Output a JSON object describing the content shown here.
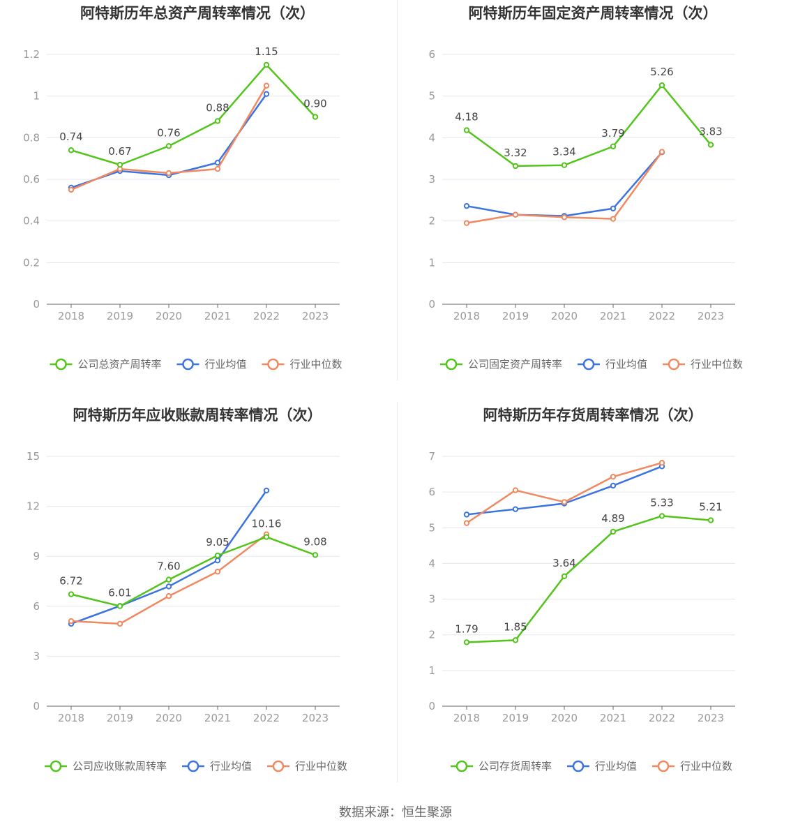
{
  "footer": {
    "source": "数据来源：恒生聚源"
  },
  "colors": {
    "company": "#52c41a",
    "avg": "#3b73e0",
    "median": "#f08860",
    "grid": "#e6e6f0",
    "axis": "#666666"
  },
  "chart_data": [
    {
      "type": "line",
      "title": "阿特斯历年总资产周转率情况（次）",
      "categories": [
        "2018",
        "2019",
        "2020",
        "2021",
        "2022",
        "2023"
      ],
      "ylim": [
        0,
        1.2
      ],
      "yticks": [
        "0",
        "0.2",
        "0.4",
        "0.6",
        "0.8",
        "1",
        "1.2"
      ],
      "series": [
        {
          "name": "公司总资产周转率",
          "values": [
            0.74,
            0.67,
            0.76,
            0.88,
            1.15,
            0.9
          ],
          "labels": [
            "0.74",
            "0.67",
            "0.76",
            "0.88",
            "1.15",
            "0.90"
          ]
        },
        {
          "name": "行业均值",
          "values": [
            0.56,
            0.64,
            0.62,
            0.68,
            1.01,
            null
          ]
        },
        {
          "name": "行业中位数",
          "values": [
            0.55,
            0.65,
            0.63,
            0.65,
            1.05,
            null
          ]
        }
      ]
    },
    {
      "type": "line",
      "title": "阿特斯历年固定资产周转率情况（次）",
      "categories": [
        "2018",
        "2019",
        "2020",
        "2021",
        "2022",
        "2023"
      ],
      "ylim": [
        0,
        6
      ],
      "yticks": [
        "0",
        "1",
        "2",
        "3",
        "4",
        "5",
        "6"
      ],
      "series": [
        {
          "name": "公司固定资产周转率",
          "values": [
            4.18,
            3.32,
            3.34,
            3.79,
            5.26,
            3.83
          ],
          "labels": [
            "4.18",
            "3.32",
            "3.34",
            "3.79",
            "5.26",
            "3.83"
          ]
        },
        {
          "name": "行业均值",
          "values": [
            2.36,
            2.15,
            2.12,
            2.3,
            3.65,
            null
          ]
        },
        {
          "name": "行业中位数",
          "values": [
            1.95,
            2.15,
            2.09,
            2.05,
            3.66,
            null
          ]
        }
      ]
    },
    {
      "type": "line",
      "title": "阿特斯历年应收账款周转率情况（次）",
      "categories": [
        "2018",
        "2019",
        "2020",
        "2021",
        "2022",
        "2023"
      ],
      "ylim": [
        0,
        15
      ],
      "yticks": [
        "0",
        "3",
        "6",
        "9",
        "12",
        "15"
      ],
      "series": [
        {
          "name": "公司应收账款周转率",
          "values": [
            6.72,
            6.01,
            7.6,
            9.05,
            10.16,
            9.08
          ],
          "labels": [
            "6.72",
            "6.01",
            "7.60",
            "9.05",
            "10.16",
            "9.08"
          ]
        },
        {
          "name": "行业均值",
          "values": [
            4.95,
            6.02,
            7.19,
            8.75,
            12.95,
            null
          ]
        },
        {
          "name": "行业中位数",
          "values": [
            5.11,
            4.95,
            6.61,
            8.08,
            10.32,
            null
          ]
        }
      ]
    },
    {
      "type": "line",
      "title": "阿特斯历年存货周转率情况（次）",
      "categories": [
        "2018",
        "2019",
        "2020",
        "2021",
        "2022",
        "2023"
      ],
      "ylim": [
        0,
        7
      ],
      "yticks": [
        "0",
        "1",
        "2",
        "3",
        "4",
        "5",
        "6",
        "7"
      ],
      "series": [
        {
          "name": "公司存货周转率",
          "values": [
            1.79,
            1.85,
            3.64,
            4.89,
            5.33,
            5.21
          ],
          "labels": [
            "1.79",
            "1.85",
            "3.64",
            "4.89",
            "5.33",
            "5.21"
          ]
        },
        {
          "name": "行业均值",
          "values": [
            5.37,
            5.52,
            5.68,
            6.18,
            6.72,
            null
          ]
        },
        {
          "name": "行业中位数",
          "values": [
            5.13,
            6.05,
            5.72,
            6.43,
            6.82,
            null
          ]
        }
      ]
    }
  ]
}
